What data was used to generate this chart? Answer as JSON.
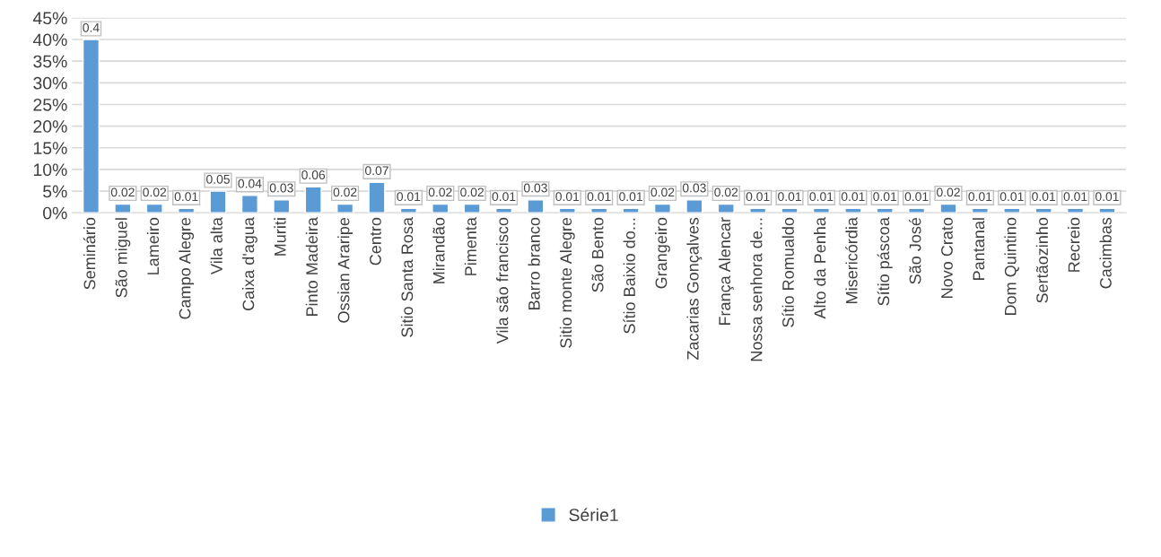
{
  "chart_data": {
    "type": "bar",
    "categories": [
      "Seminário",
      "São miguel",
      "Lameiro",
      "Campo Alegre",
      "Vila alta",
      "Caixa d'agua",
      "Muriti",
      "Pinto Madeira",
      "Ossian Araripe",
      "Centro",
      "Sitio Santa Rosa",
      "Mirandão",
      "Pimenta",
      "Vila são francisco",
      "Barro branco",
      "Sitio monte Alegre",
      "São Bento",
      "Sítio Baixio do...",
      "Grangeiro",
      "Zacarias Gonçalves",
      "França Alencar",
      "Nossa senhora de...",
      "Sítio Romualdo",
      "Alto da Penha",
      "Misericórdia",
      "Sítio páscoa",
      "São José",
      "Novo Crato",
      "Pantanal",
      "Dom Quintino",
      "Sertãozinho",
      "Recreio",
      "Cacimbas"
    ],
    "series": [
      {
        "name": "Série1",
        "color": "#5b9bd5",
        "values": [
          0.4,
          0.02,
          0.02,
          0.01,
          0.05,
          0.04,
          0.03,
          0.06,
          0.02,
          0.07,
          0.01,
          0.02,
          0.02,
          0.01,
          0.03,
          0.01,
          0.01,
          0.01,
          0.02,
          0.03,
          0.02,
          0.01,
          0.01,
          0.01,
          0.01,
          0.01,
          0.01,
          0.02,
          0.01,
          0.01,
          0.01,
          0.01,
          0.01
        ]
      }
    ],
    "ylim": [
      0,
      0.45
    ],
    "yticks": [
      {
        "value": 0,
        "label": "0%"
      },
      {
        "value": 0.05,
        "label": "5%"
      },
      {
        "value": 0.1,
        "label": "10%"
      },
      {
        "value": 0.15,
        "label": "15%"
      },
      {
        "value": 0.2,
        "label": "20%"
      },
      {
        "value": 0.25,
        "label": "25%"
      },
      {
        "value": 0.3,
        "label": "30%"
      },
      {
        "value": 0.35,
        "label": "35%"
      },
      {
        "value": 0.4,
        "label": "40%"
      },
      {
        "value": 0.45,
        "label": "45%"
      }
    ],
    "grid": "y",
    "legend": "bottom",
    "data_labels": true
  }
}
